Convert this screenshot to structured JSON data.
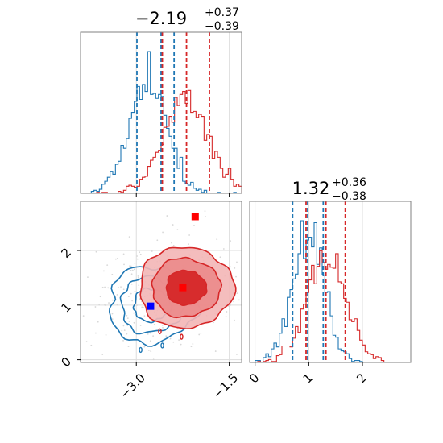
{
  "chart_data": [
    {
      "panel": "param1-marginal",
      "type": "histogram",
      "title": {
        "main": "−2.19",
        "sup": "+0.37",
        "sub": "−0.39"
      },
      "xlim": [
        -3.9,
        -1.3
      ],
      "x_ticks": [
        -3.0,
        -1.5
      ],
      "grid": true,
      "series": [
        {
          "color": "#1f77b4",
          "quantiles": [
            -2.99,
            -2.6,
            -2.39
          ],
          "peak": -2.8,
          "spread": 0.3
        },
        {
          "color": "#d62728",
          "quantiles": [
            -2.58,
            -2.19,
            -1.82
          ],
          "peak": -2.2,
          "spread": 0.38
        }
      ]
    },
    {
      "panel": "param2-marginal",
      "type": "histogram",
      "title": {
        "main": "1.32",
        "sup": "+0.36",
        "sub": "−0.38"
      },
      "xlim": [
        -0.1,
        2.9
      ],
      "x_ticks": [
        0,
        1,
        2
      ],
      "x_tick_labels": [
        "0",
        "1",
        "2"
      ],
      "grid": true,
      "series": [
        {
          "color": "#1f77b4",
          "quantiles": [
            0.7,
            0.98,
            1.27
          ],
          "peak": 0.98,
          "spread": 0.3
        },
        {
          "color": "#d62728",
          "quantiles": [
            0.95,
            1.32,
            1.68
          ],
          "peak": 1.32,
          "spread": 0.37
        }
      ]
    },
    {
      "panel": "joint-2d",
      "type": "contour",
      "xlim": [
        -3.9,
        -1.3
      ],
      "ylim": [
        -0.05,
        2.9
      ],
      "x_ticks": [
        -3.0,
        -1.5
      ],
      "x_tick_labels": [
        "−3.0",
        "−1.5"
      ],
      "y_ticks": [
        0,
        1,
        2
      ],
      "y_tick_labels": [
        "0",
        "1",
        "2"
      ],
      "grid": true,
      "series": [
        {
          "color": "#1f77b4",
          "center": [
            -2.75,
            1.0
          ],
          "spread": [
            0.35,
            0.35
          ],
          "filled": false
        },
        {
          "color": "#d62728",
          "center": [
            -2.2,
            1.32
          ],
          "spread": [
            0.38,
            0.37
          ],
          "filled": true
        }
      ],
      "markers": [
        {
          "color": "#0000ff",
          "x": -2.77,
          "y": 0.98
        },
        {
          "color": "#ff0000",
          "x": -2.25,
          "y": 1.32
        },
        {
          "color": "#ff0000",
          "x": -2.05,
          "y": 2.62
        }
      ]
    }
  ]
}
